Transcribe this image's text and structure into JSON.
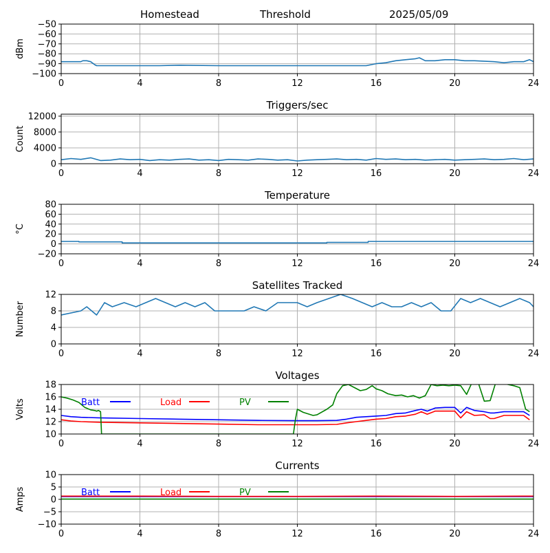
{
  "header": {
    "station": "Homestead",
    "trigger_mode": "Threshold",
    "date": "2025/05/09"
  },
  "colors": {
    "default": "#1f77b4",
    "batt": "#0000ff",
    "load": "#ff0000",
    "pv": "#008000",
    "grid": "#b0b0b0"
  },
  "chart_data": [
    {
      "id": "dbm",
      "type": "line",
      "title": "",
      "xlabel": "",
      "ylabel": "dBm",
      "xlim": [
        0,
        24
      ],
      "ylim": [
        -100,
        -50
      ],
      "xticks": [
        0,
        4,
        8,
        12,
        16,
        20,
        24
      ],
      "yticks": [
        -100,
        -90,
        -80,
        -70,
        -60,
        -50
      ],
      "ytick_labels": [
        "−100",
        "−90",
        "−80",
        "−70",
        "−60",
        "−50"
      ],
      "grid": true,
      "series": [
        {
          "color": "#1f77b4",
          "x": [
            0,
            1,
            1.1,
            1.3,
            1.5,
            1.7,
            1.8,
            3,
            5,
            6,
            8,
            10,
            12,
            14,
            15.5,
            16,
            16.5,
            17,
            17.5,
            18,
            18.2,
            18.5,
            19,
            19.5,
            20,
            20.5,
            21,
            22,
            22.5,
            23,
            23.5,
            23.8,
            24
          ],
          "y": [
            -88,
            -88,
            -87,
            -87,
            -88,
            -91,
            -92,
            -92,
            -92,
            -91.5,
            -92,
            -92,
            -92,
            -92,
            -92,
            -90,
            -89,
            -87,
            -86,
            -85,
            -84,
            -87,
            -87,
            -86,
            -86,
            -87,
            -87,
            -88,
            -89,
            -88,
            -88,
            -86,
            -88
          ]
        }
      ]
    },
    {
      "id": "triggers",
      "type": "line",
      "title": "Triggers/sec",
      "xlabel": "",
      "ylabel": "Count",
      "xlim": [
        0,
        24
      ],
      "ylim": [
        0,
        12500
      ],
      "xticks": [
        0,
        4,
        8,
        12,
        16,
        20,
        24
      ],
      "yticks": [
        0,
        4000,
        8000,
        12000
      ],
      "ytick_labels": [
        "0",
        "4000",
        "8000",
        "12000"
      ],
      "grid": true,
      "series": [
        {
          "color": "#1f77b4",
          "x": [
            0,
            0.5,
            1,
            1.5,
            2,
            2.5,
            3,
            3.5,
            4,
            4.5,
            5,
            5.5,
            6,
            6.5,
            7,
            7.5,
            8,
            8.5,
            9,
            9.5,
            10,
            10.5,
            11,
            11.5,
            12,
            12.5,
            13,
            13.5,
            14,
            14.5,
            15,
            15.5,
            16,
            16.5,
            17,
            17.5,
            18,
            18.5,
            19,
            19.5,
            20,
            20.5,
            21,
            21.5,
            22,
            22.5,
            23,
            23.5,
            24
          ],
          "y": [
            1000,
            1300,
            1100,
            1500,
            800,
            900,
            1200,
            1000,
            1100,
            800,
            1000,
            900,
            1100,
            1200,
            900,
            1000,
            800,
            1100,
            1000,
            900,
            1200,
            1100,
            900,
            1000,
            700,
            900,
            1000,
            1100,
            1200,
            1000,
            1100,
            900,
            1300,
            1100,
            1200,
            1000,
            1100,
            900,
            1000,
            1100,
            900,
            1000,
            1100,
            1200,
            1000,
            1100,
            1300,
            1000,
            1200
          ]
        }
      ]
    },
    {
      "id": "temperature",
      "type": "line",
      "title": "Temperature",
      "xlabel": "",
      "ylabel": "°C",
      "xlim": [
        0,
        24
      ],
      "ylim": [
        -20,
        80
      ],
      "xticks": [
        0,
        4,
        8,
        12,
        16,
        20,
        24
      ],
      "yticks": [
        -20,
        0,
        20,
        40,
        60,
        80
      ],
      "ytick_labels": [
        "−20",
        "0",
        "20",
        "40",
        "60",
        "80"
      ],
      "grid": true,
      "series": [
        {
          "color": "#1f77b4",
          "x": [
            0,
            0.9,
            0.9,
            3.1,
            3.1,
            13.5,
            13.5,
            15.6,
            15.6,
            24
          ],
          "y": [
            5,
            5,
            4,
            4,
            2,
            2,
            3,
            3,
            5,
            5
          ]
        }
      ]
    },
    {
      "id": "satellites",
      "type": "line",
      "title": "Satellites Tracked",
      "xlabel": "",
      "ylabel": "Number",
      "xlim": [
        0,
        24
      ],
      "ylim": [
        0,
        12
      ],
      "xticks": [
        0,
        4,
        8,
        12,
        16,
        20,
        24
      ],
      "yticks": [
        0,
        4,
        8,
        12
      ],
      "ytick_labels": [
        "0",
        "4",
        "8",
        "12"
      ],
      "grid": true,
      "series": [
        {
          "color": "#1f77b4",
          "x": [
            0,
            1,
            1.3,
            1.8,
            2.2,
            2.6,
            3.2,
            3.8,
            4.3,
            4.8,
            5.3,
            5.8,
            6.3,
            6.8,
            7.3,
            7.8,
            8.5,
            9.3,
            9.8,
            10.4,
            11,
            11.6,
            12,
            12.5,
            13,
            13.6,
            14.2,
            14.8,
            15.3,
            15.8,
            16.3,
            16.8,
            17.3,
            17.8,
            18.3,
            18.8,
            19.3,
            19.8,
            20.3,
            20.8,
            21.3,
            21.8,
            22.3,
            22.8,
            23.3,
            23.8,
            24
          ],
          "y": [
            7,
            8,
            9,
            7,
            10,
            9,
            10,
            9,
            10,
            11,
            10,
            9,
            10,
            9,
            10,
            8,
            8,
            8,
            9,
            8,
            10,
            10,
            10,
            9,
            10,
            11,
            12,
            11,
            10,
            9,
            10,
            9,
            9,
            10,
            9,
            10,
            8,
            8,
            11,
            10,
            11,
            10,
            9,
            10,
            11,
            10,
            9
          ]
        }
      ]
    },
    {
      "id": "voltages",
      "type": "line",
      "title": "Voltages",
      "xlabel": "",
      "ylabel": "Volts",
      "xlim": [
        0,
        24
      ],
      "ylim": [
        10,
        18
      ],
      "xticks": [
        0,
        4,
        8,
        12,
        16,
        20,
        24
      ],
      "yticks": [
        10,
        12,
        14,
        16,
        18
      ],
      "ytick_labels": [
        "10",
        "12",
        "14",
        "16",
        "18"
      ],
      "grid": true,
      "legend": "top-left, horizontal",
      "series": [
        {
          "name": "Batt",
          "color": "#0000ff",
          "x": [
            0,
            0.5,
            1,
            2,
            4,
            6,
            8,
            10,
            12,
            13,
            14,
            14.5,
            15,
            15.5,
            16,
            16.5,
            17,
            17.5,
            18,
            18.3,
            18.6,
            19,
            19.5,
            20,
            20.3,
            20.6,
            21,
            21.5,
            21.8,
            22,
            22.5,
            23,
            23.5,
            23.8
          ],
          "y": [
            13,
            12.8,
            12.7,
            12.6,
            12.5,
            12.4,
            12.3,
            12.2,
            12.15,
            12.15,
            12.2,
            12.4,
            12.7,
            12.8,
            12.9,
            13.0,
            13.3,
            13.4,
            13.8,
            14.0,
            13.7,
            14.2,
            14.3,
            14.3,
            13.4,
            14.3,
            13.8,
            13.6,
            13.4,
            13.4,
            13.6,
            13.6,
            13.6,
            13.0
          ]
        },
        {
          "name": "Load",
          "color": "#ff0000",
          "x": [
            0,
            0.5,
            1,
            2,
            4,
            6,
            8,
            10,
            12,
            13,
            14,
            14.5,
            15,
            15.5,
            16,
            16.5,
            17,
            17.5,
            18,
            18.3,
            18.6,
            19,
            19.5,
            20,
            20.3,
            20.6,
            21,
            21.5,
            21.8,
            22,
            22.5,
            23,
            23.5,
            23.8
          ],
          "y": [
            12.3,
            12.1,
            12.0,
            11.9,
            11.8,
            11.7,
            11.6,
            11.5,
            11.5,
            11.5,
            11.55,
            11.8,
            12.0,
            12.2,
            12.4,
            12.5,
            12.8,
            12.9,
            13.2,
            13.6,
            13.2,
            13.7,
            13.7,
            13.7,
            12.6,
            13.6,
            13.0,
            13.1,
            12.5,
            12.5,
            13.0,
            13.0,
            13.0,
            12.3
          ]
        },
        {
          "name": "PV",
          "color": "#008000",
          "x": [
            0,
            0.3,
            0.6,
            0.9,
            1.2,
            1.5,
            1.7,
            1.8,
            1.9,
            2.0,
            2.05,
            11.8,
            11.9,
            12.0,
            12.3,
            12.8,
            13.0,
            13.5,
            13.8,
            14.0,
            14.3,
            14.6,
            14.9,
            15.2,
            15.5,
            15.8,
            16.0,
            16.3,
            16.6,
            17.0,
            17.3,
            17.6,
            17.9,
            18.2,
            18.5,
            18.8,
            19.1,
            19.4,
            19.7,
            20.0,
            20.3,
            20.6,
            20.9,
            21.2,
            21.5,
            21.8,
            22.1,
            22.4,
            22.7,
            23.0,
            23.3,
            23.6,
            23.8
          ],
          "y": [
            16,
            15.8,
            15.5,
            15.1,
            14.3,
            13.9,
            13.8,
            13.7,
            13.8,
            13.6,
            10,
            10,
            12.3,
            14.0,
            13.5,
            13.0,
            13.1,
            14.0,
            14.7,
            16.5,
            17.8,
            18.0,
            17.5,
            17.0,
            17.2,
            17.8,
            17.3,
            17.0,
            16.5,
            16.2,
            16.3,
            16.0,
            16.2,
            15.8,
            16.2,
            18.0,
            17.8,
            17.9,
            17.8,
            17.9,
            17.8,
            16.4,
            18.5,
            18.2,
            15.3,
            15.4,
            18.5,
            18.2,
            18.0,
            17.8,
            17.5,
            14.0,
            13.6
          ]
        }
      ]
    },
    {
      "id": "currents",
      "type": "line",
      "title": "Currents",
      "xlabel": "",
      "ylabel": "Amps",
      "xlim": [
        0,
        24
      ],
      "ylim": [
        -10,
        10
      ],
      "xticks": [
        0,
        4,
        8,
        12,
        16,
        20,
        24
      ],
      "yticks": [
        -10,
        -5,
        0,
        5,
        10
      ],
      "ytick_labels": [
        "−10",
        "−5",
        "0",
        "5",
        "10"
      ],
      "grid": true,
      "legend": "top-left, horizontal",
      "series": [
        {
          "name": "Batt",
          "color": "#0000ff",
          "x": [
            0,
            24
          ],
          "y": [
            1.1,
            1.1
          ]
        },
        {
          "name": "Load",
          "color": "#ff0000",
          "x": [
            0,
            4,
            8,
            12,
            16,
            20,
            24
          ],
          "y": [
            1.3,
            1.3,
            1.2,
            1.2,
            1.3,
            1.2,
            1.3
          ]
        },
        {
          "name": "PV",
          "color": "#008000",
          "x": [
            0,
            24
          ],
          "y": [
            0.1,
            0.1
          ]
        }
      ]
    }
  ]
}
